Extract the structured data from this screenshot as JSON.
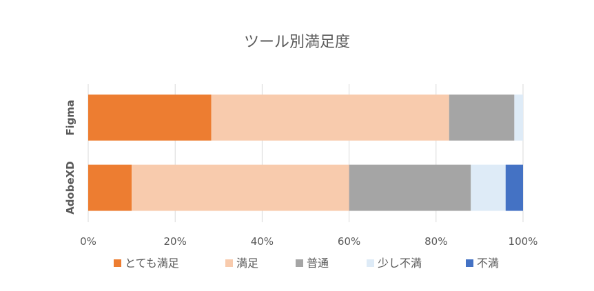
{
  "chart_data": {
    "type": "bar",
    "orientation": "horizontal",
    "stacked": "percent",
    "title": "ツール別満足度",
    "categories": [
      "Figma",
      "AdobeXD"
    ],
    "series": [
      {
        "name": "とても満足",
        "color": "#ED7D31",
        "values": [
          28.3,
          10
        ]
      },
      {
        "name": "満足",
        "color": "#F8CBAD",
        "values": [
          54.7,
          50
        ]
      },
      {
        "name": "普通",
        "color": "#A5A5A5",
        "values": [
          15,
          28
        ]
      },
      {
        "name": "少し不満",
        "color": "#DEEBF7",
        "values": [
          2,
          8
        ]
      },
      {
        "name": "不満",
        "color": "#4472C4",
        "values": [
          0,
          4
        ]
      }
    ],
    "x_ticks": [
      "0%",
      "20%",
      "40%",
      "60%",
      "80%",
      "100%"
    ],
    "xlim": [
      0,
      100
    ],
    "grid": true,
    "legend_position": "bottom"
  }
}
